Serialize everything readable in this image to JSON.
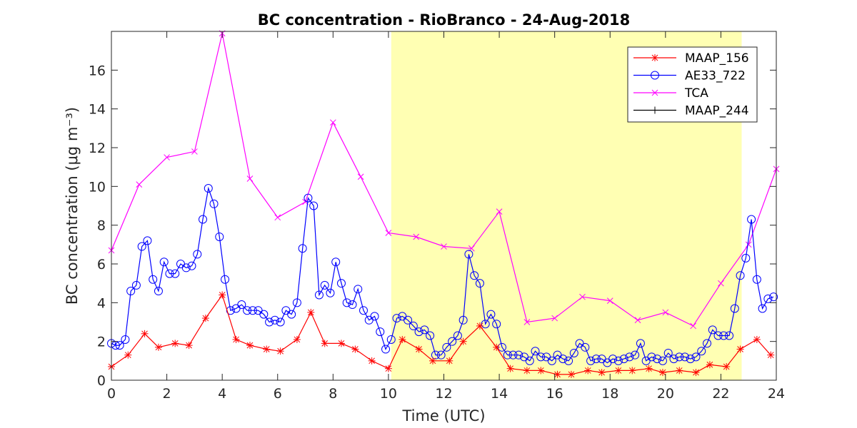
{
  "chart_data": {
    "type": "line",
    "title": "BC concentration  - RioBranco - 24-Aug-2018",
    "xlabel": "Time (UTC)",
    "ylabel": "BC concentration (μg m⁻³)",
    "xlim": [
      0,
      24
    ],
    "ylim": [
      0,
      18
    ],
    "xticks": [
      0,
      2,
      4,
      6,
      8,
      10,
      12,
      14,
      16,
      18,
      20,
      22,
      24
    ],
    "yticks": [
      0,
      2,
      4,
      6,
      8,
      10,
      12,
      14,
      16
    ],
    "grid": false,
    "legend_position": "top-right",
    "highlight_region": {
      "x_start": 10.1,
      "x_end": 22.75,
      "color": "#ffffb3"
    },
    "series": [
      {
        "name": "MAAP_156",
        "color": "#ff0000",
        "marker": "asterisk",
        "x": [
          0,
          0.6,
          1.2,
          1.7,
          2.3,
          2.8,
          3.4,
          4.0,
          4.5,
          5.0,
          5.6,
          6.1,
          6.7,
          7.2,
          7.7,
          8.3,
          8.8,
          9.4,
          10.0,
          10.5,
          11.1,
          11.6,
          12.2,
          12.7,
          13.3,
          13.9,
          14.4,
          15.0,
          15.5,
          16.1,
          16.6,
          17.2,
          17.7,
          18.3,
          18.8,
          19.4,
          19.9,
          20.5,
          21.1,
          21.6,
          22.2,
          22.7,
          23.3,
          23.8
        ],
        "y": [
          0.7,
          1.3,
          2.4,
          1.7,
          1.9,
          1.8,
          3.2,
          4.4,
          2.1,
          1.8,
          1.6,
          1.5,
          2.1,
          3.5,
          1.9,
          1.9,
          1.6,
          1.0,
          0.6,
          2.1,
          1.6,
          1.0,
          1.0,
          2.0,
          2.8,
          1.7,
          0.6,
          0.5,
          0.5,
          0.3,
          0.3,
          0.5,
          0.4,
          0.5,
          0.5,
          0.6,
          0.4,
          0.5,
          0.4,
          0.8,
          0.7,
          1.6,
          2.1,
          1.3
        ]
      },
      {
        "name": "AE33_722",
        "color": "#0000ff",
        "marker": "circle",
        "x": [
          0,
          0.15,
          0.3,
          0.5,
          0.7,
          0.9,
          1.1,
          1.3,
          1.5,
          1.7,
          1.9,
          2.1,
          2.3,
          2.5,
          2.7,
          2.9,
          3.1,
          3.3,
          3.5,
          3.7,
          3.9,
          4.1,
          4.3,
          4.5,
          4.7,
          4.9,
          5.1,
          5.3,
          5.5,
          5.7,
          5.9,
          6.1,
          6.3,
          6.5,
          6.7,
          6.9,
          7.1,
          7.3,
          7.5,
          7.7,
          7.9,
          8.1,
          8.3,
          8.5,
          8.7,
          8.9,
          9.1,
          9.3,
          9.5,
          9.7,
          9.9,
          10.1,
          10.3,
          10.5,
          10.7,
          10.9,
          11.1,
          11.3,
          11.5,
          11.7,
          11.9,
          12.1,
          12.3,
          12.5,
          12.7,
          12.9,
          13.1,
          13.3,
          13.5,
          13.7,
          13.9,
          14.1,
          14.3,
          14.5,
          14.7,
          14.9,
          15.1,
          15.3,
          15.5,
          15.7,
          15.9,
          16.1,
          16.3,
          16.5,
          16.7,
          16.9,
          17.1,
          17.3,
          17.5,
          17.7,
          17.9,
          18.1,
          18.3,
          18.5,
          18.7,
          18.9,
          19.1,
          19.3,
          19.5,
          19.7,
          19.9,
          20.1,
          20.3,
          20.5,
          20.7,
          20.9,
          21.1,
          21.3,
          21.5,
          21.7,
          21.9,
          22.1,
          22.3,
          22.5,
          22.7,
          22.9,
          23.1,
          23.3,
          23.5,
          23.7,
          23.9
        ],
        "y": [
          1.9,
          1.8,
          1.8,
          2.1,
          4.6,
          4.9,
          6.9,
          7.2,
          5.2,
          4.6,
          6.1,
          5.5,
          5.5,
          6.0,
          5.8,
          5.9,
          6.5,
          8.3,
          9.9,
          9.1,
          7.4,
          5.2,
          3.6,
          3.7,
          3.9,
          3.6,
          3.6,
          3.6,
          3.4,
          3.0,
          3.1,
          3.0,
          3.6,
          3.4,
          4.0,
          6.8,
          9.4,
          9.0,
          4.4,
          4.9,
          4.5,
          6.1,
          5.0,
          4.0,
          3.9,
          4.7,
          3.6,
          3.1,
          3.3,
          2.5,
          1.6,
          2.1,
          3.2,
          3.3,
          3.1,
          2.8,
          2.5,
          2.6,
          2.3,
          1.3,
          1.3,
          1.7,
          2.0,
          2.3,
          3.1,
          6.5,
          5.4,
          5.0,
          2.9,
          3.4,
          2.9,
          1.7,
          1.3,
          1.3,
          1.3,
          1.2,
          1.0,
          1.5,
          1.2,
          1.2,
          1.0,
          1.3,
          1.1,
          1.0,
          1.4,
          1.9,
          1.7,
          1.0,
          1.1,
          1.1,
          0.9,
          1.1,
          1.0,
          1.1,
          1.2,
          1.3,
          1.9,
          1.0,
          1.2,
          1.1,
          1.0,
          1.4,
          1.1,
          1.2,
          1.2,
          1.1,
          1.2,
          1.5,
          1.9,
          2.6,
          2.3,
          2.3,
          2.3,
          3.7,
          5.4,
          6.3,
          8.3,
          5.2,
          3.7,
          4.2,
          4.3
        ]
      },
      {
        "name": "TCA",
        "color": "#ff00ff",
        "marker": "x",
        "x": [
          0,
          1.0,
          2.0,
          3.0,
          4.0,
          5.0,
          6.0,
          7.0,
          8.0,
          9.0,
          10.0,
          11.0,
          12.0,
          13.0,
          14.0,
          15.0,
          16.0,
          17.0,
          18.0,
          19.0,
          20.0,
          21.0,
          22.0,
          23.0,
          24.0
        ],
        "y": [
          6.7,
          10.1,
          11.5,
          11.8,
          17.9,
          10.4,
          8.4,
          9.2,
          13.3,
          10.5,
          7.6,
          7.4,
          6.9,
          6.8,
          8.7,
          3.0,
          3.2,
          4.3,
          4.1,
          3.1,
          3.5,
          2.8,
          5.0,
          7.0,
          10.9
        ]
      },
      {
        "name": "MAAP_244",
        "color": "#000000",
        "marker": "plus",
        "x": [],
        "y": []
      }
    ]
  }
}
